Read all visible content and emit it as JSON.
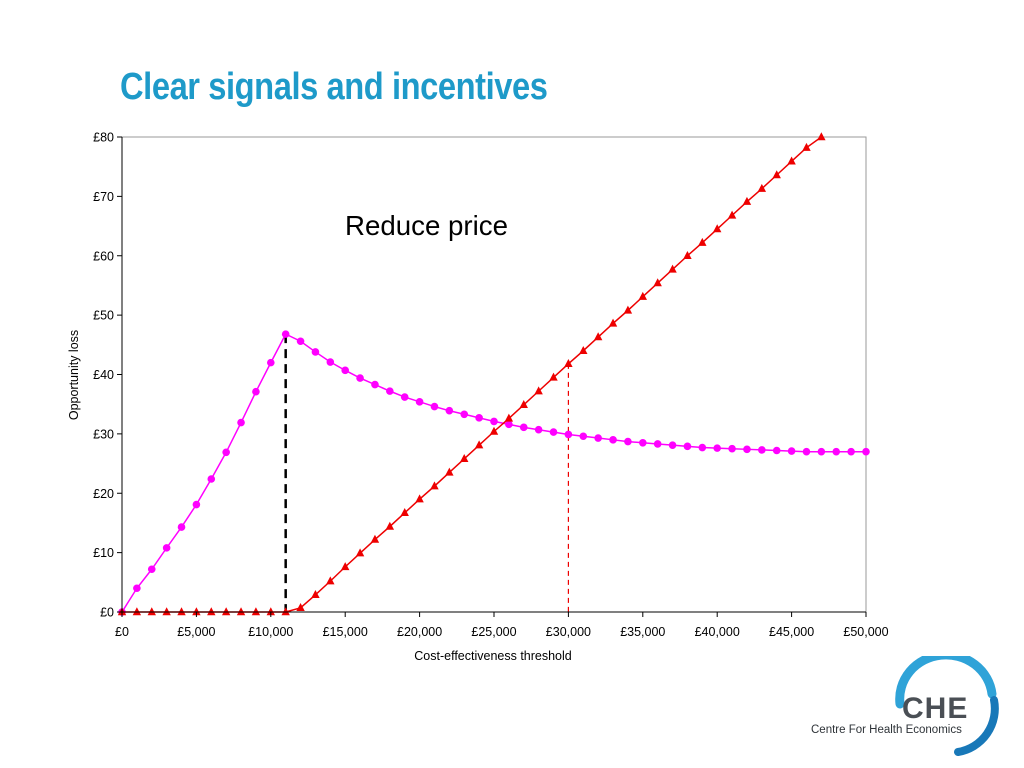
{
  "slide": {
    "title": "Clear signals and incentives"
  },
  "logo": {
    "abbreviation": "CHE",
    "name": "Centre For Health Economics"
  },
  "chart_data": {
    "type": "line",
    "title": "",
    "xlabel": "Cost-effectiveness threshold",
    "ylabel": "Opportunity loss",
    "annotation": "Reduce price",
    "xlim": [
      0,
      50000
    ],
    "ylim": [
      0,
      80
    ],
    "grid": false,
    "legend": "none",
    "x_ticks": [
      0,
      5000,
      10000,
      15000,
      20000,
      25000,
      30000,
      35000,
      40000,
      45000,
      50000
    ],
    "x_tick_labels": [
      "£0",
      "£5,000",
      "£10,000",
      "£15,000",
      "£20,000",
      "£25,000",
      "£30,000",
      "£35,000",
      "£40,000",
      "£45,000",
      "£50,000"
    ],
    "y_ticks": [
      0,
      10,
      20,
      30,
      40,
      50,
      60,
      70,
      80
    ],
    "y_tick_labels": [
      "£0",
      "£10",
      "£20",
      "£30",
      "£40",
      "£50",
      "£60",
      "£70",
      "£80"
    ],
    "series": [
      {
        "marker": "circle",
        "color": "#ff00ff",
        "x": [
          0,
          1000,
          2000,
          3000,
          4000,
          5000,
          6000,
          7000,
          8000,
          9000,
          10000,
          11000,
          12000,
          13000,
          14000,
          15000,
          16000,
          17000,
          18000,
          19000,
          20000,
          21000,
          22000,
          23000,
          24000,
          25000,
          26000,
          27000,
          28000,
          29000,
          30000,
          31000,
          32000,
          33000,
          34000,
          35000,
          36000,
          37000,
          38000,
          39000,
          40000,
          41000,
          42000,
          43000,
          44000,
          45000,
          46000,
          47000,
          48000,
          49000,
          50000
        ],
        "y": [
          0,
          4,
          7.2,
          10.8,
          14.3,
          18.1,
          22.4,
          26.9,
          31.9,
          37.1,
          42,
          46.8,
          45.6,
          43.8,
          42.1,
          40.7,
          39.4,
          38.3,
          37.2,
          36.2,
          35.4,
          34.6,
          33.9,
          33.3,
          32.7,
          32.1,
          31.6,
          31.1,
          30.7,
          30.3,
          29.9,
          29.6,
          29.3,
          29,
          28.7,
          28.5,
          28.3,
          28.1,
          27.9,
          27.7,
          27.6,
          27.5,
          27.4,
          27.3,
          27.2,
          27.1,
          27,
          27,
          27,
          27,
          27
        ]
      },
      {
        "marker": "triangle",
        "color": "#ee0000",
        "x": [
          0,
          1000,
          2000,
          3000,
          4000,
          5000,
          6000,
          7000,
          8000,
          9000,
          10000,
          11000,
          12000,
          13000,
          14000,
          15000,
          16000,
          17000,
          18000,
          19000,
          20000,
          21000,
          22000,
          23000,
          24000,
          25000,
          26000,
          27000,
          28000,
          29000,
          30000,
          31000,
          32000,
          33000,
          34000,
          35000,
          36000,
          37000,
          38000,
          39000,
          40000,
          41000,
          42000,
          43000,
          44000,
          45000,
          46000,
          47000
        ],
        "y": [
          0,
          0,
          0,
          0,
          0,
          0,
          0,
          0,
          0,
          0,
          0,
          0,
          0.7,
          2.9,
          5.2,
          7.6,
          9.9,
          12.2,
          14.4,
          16.7,
          19,
          21.2,
          23.5,
          25.8,
          28.1,
          30.4,
          32.6,
          34.9,
          37.2,
          39.5,
          41.8,
          44,
          46.3,
          48.6,
          50.8,
          53.1,
          55.4,
          57.7,
          60,
          62.2,
          64.5,
          66.8,
          69.1,
          71.3,
          73.6,
          75.9,
          78.2,
          80
        ]
      }
    ],
    "reference_lines": [
      {
        "x": 11000,
        "y": 46.8,
        "color": "#000000",
        "style": "dashed"
      },
      {
        "x": 30000,
        "y": 41.8,
        "color": "#ee0000",
        "style": "dashed"
      }
    ]
  }
}
